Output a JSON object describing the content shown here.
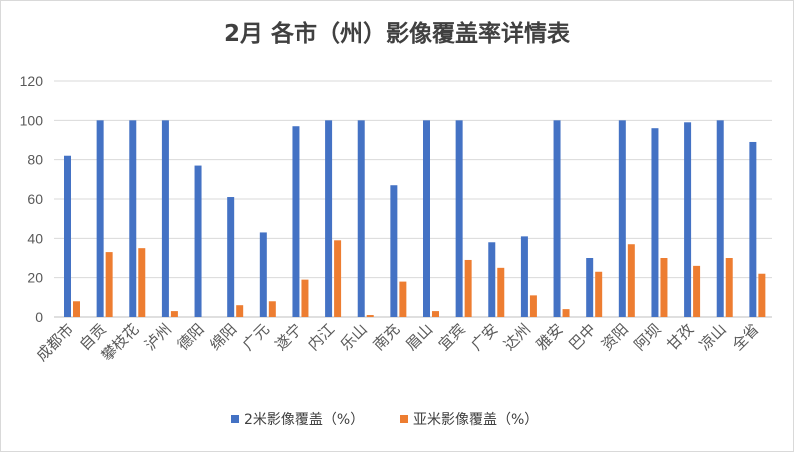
{
  "chart_data": {
    "type": "bar",
    "title": "2月 各市（州）影像覆盖率详情表",
    "xlabel": "",
    "ylabel": "",
    "ylim": [
      0,
      120
    ],
    "yticks": [
      0,
      20,
      40,
      60,
      80,
      100,
      120
    ],
    "grid": true,
    "legend_position": "bottom",
    "categories": [
      "成都市",
      "自贡",
      "攀枝花",
      "泸州",
      "德阳",
      "绵阳",
      "广元",
      "遂宁",
      "内江",
      "乐山",
      "南充",
      "眉山",
      "宜宾",
      "广安",
      "达州",
      "雅安",
      "巴中",
      "资阳",
      "阿坝",
      "甘孜",
      "凉山",
      "全省"
    ],
    "series": [
      {
        "name": "2米影像覆盖（%）",
        "color": "#4472c4",
        "values": [
          82,
          100,
          100,
          100,
          77,
          61,
          43,
          97,
          100,
          100,
          67,
          100,
          100,
          38,
          41,
          100,
          30,
          100,
          96,
          99,
          100,
          89
        ]
      },
      {
        "name": "亚米影像覆盖（%）",
        "color": "#ed7d31",
        "values": [
          8,
          33,
          35,
          3,
          0,
          6,
          8,
          19,
          39,
          1,
          18,
          3,
          29,
          25,
          11,
          4,
          23,
          37,
          30,
          26,
          30,
          22
        ]
      }
    ]
  }
}
